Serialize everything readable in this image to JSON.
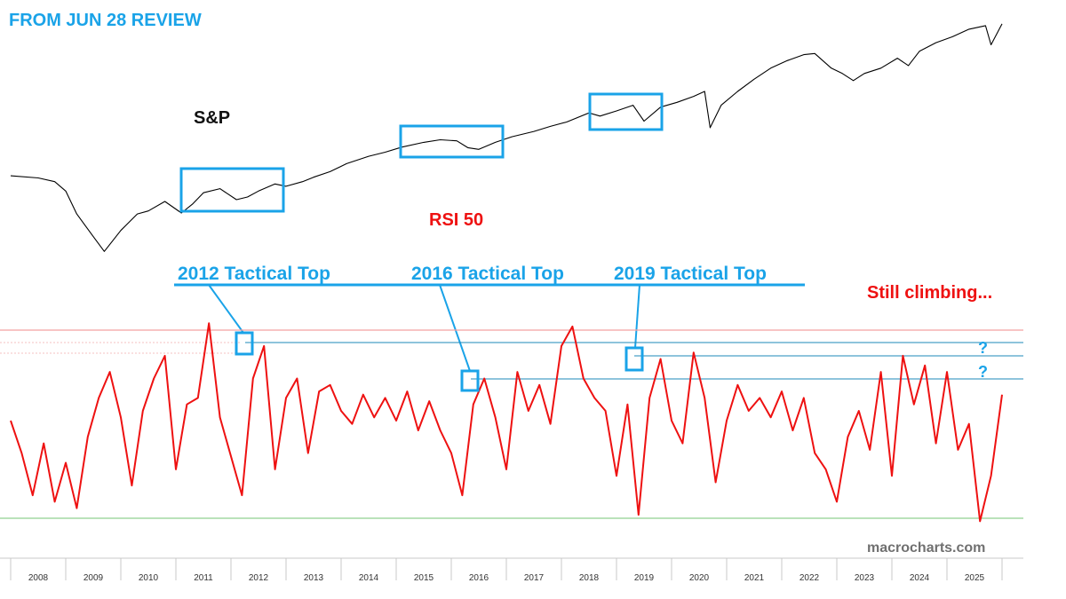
{
  "header": {
    "title": "FROM JUN 28 REVIEW"
  },
  "labels": {
    "spx": "S&P",
    "rsi": "RSI 50",
    "still_climbing": "Still climbing...",
    "question": "?",
    "watermark": "macrocharts.com"
  },
  "tactical_tops": [
    {
      "label": "2012 Tactical Top",
      "year": 2012
    },
    {
      "label": "2016 Tactical Top",
      "year": 2016
    },
    {
      "label": "2019 Tactical Top",
      "year": 2019
    }
  ],
  "colors": {
    "accent": "#1aa3e8",
    "price_line": "#000000",
    "rsi_line": "#ee1111",
    "upper_band": "#f4a0a0",
    "lower_band": "#90d090",
    "tick_text": "#333333"
  },
  "chart_data": [
    {
      "type": "line",
      "name": "S&P",
      "x": [
        2007.5,
        2008.0,
        2008.3,
        2008.5,
        2008.7,
        2009.0,
        2009.2,
        2009.5,
        2009.8,
        2010.0,
        2010.3,
        2010.6,
        2010.8,
        2011.0,
        2011.3,
        2011.6,
        2011.8,
        2012.0,
        2012.3,
        2012.5,
        2012.8,
        2013.0,
        2013.3,
        2013.6,
        2014.0,
        2014.3,
        2014.6,
        2015.0,
        2015.3,
        2015.6,
        2015.8,
        2016.0,
        2016.3,
        2016.6,
        2017.0,
        2017.3,
        2017.6,
        2018.0,
        2018.2,
        2018.5,
        2018.8,
        2019.0,
        2019.3,
        2019.6,
        2019.9,
        2020.1,
        2020.2,
        2020.4,
        2020.7,
        2021.0,
        2021.3,
        2021.6,
        2021.9,
        2022.1,
        2022.4,
        2022.6,
        2022.8,
        2023.0,
        2023.3,
        2023.6,
        2023.8,
        2024.0,
        2024.3,
        2024.6,
        2024.9,
        2025.2,
        2025.3,
        2025.5
      ],
      "values": [
        1500,
        1470,
        1420,
        1300,
        1050,
        850,
        740,
        900,
        1050,
        1080,
        1180,
        1060,
        1150,
        1280,
        1330,
        1200,
        1230,
        1300,
        1390,
        1360,
        1420,
        1480,
        1560,
        1680,
        1800,
        1870,
        1960,
        2050,
        2100,
        2080,
        1950,
        1920,
        2050,
        2160,
        2270,
        2380,
        2480,
        2700,
        2620,
        2750,
        2900,
        2500,
        2850,
        2980,
        3150,
        3300,
        2350,
        2900,
        3300,
        3700,
        4100,
        4400,
        4650,
        4700,
        4100,
        3900,
        3650,
        3900,
        4100,
        4500,
        4200,
        4800,
        5200,
        5500,
        5900,
        6100,
        5100,
        6200
      ],
      "annotations": [
        "S&P",
        "RSI 50"
      ]
    },
    {
      "type": "line",
      "name": "RSI",
      "x": [
        2007.5,
        2007.7,
        2007.9,
        2008.1,
        2008.3,
        2008.5,
        2008.7,
        2008.9,
        2009.1,
        2009.3,
        2009.5,
        2009.7,
        2009.9,
        2010.1,
        2010.3,
        2010.5,
        2010.7,
        2010.9,
        2011.1,
        2011.3,
        2011.5,
        2011.7,
        2011.9,
        2012.1,
        2012.3,
        2012.5,
        2012.7,
        2012.9,
        2013.1,
        2013.3,
        2013.5,
        2013.7,
        2013.9,
        2014.1,
        2014.3,
        2014.5,
        2014.7,
        2014.9,
        2015.1,
        2015.3,
        2015.5,
        2015.7,
        2015.9,
        2016.1,
        2016.3,
        2016.5,
        2016.7,
        2016.9,
        2017.1,
        2017.3,
        2017.5,
        2017.7,
        2017.9,
        2018.1,
        2018.3,
        2018.5,
        2018.7,
        2018.9,
        2019.1,
        2019.3,
        2019.5,
        2019.7,
        2019.9,
        2020.1,
        2020.3,
        2020.5,
        2020.7,
        2020.9,
        2021.1,
        2021.3,
        2021.5,
        2021.7,
        2021.9,
        2022.1,
        2022.3,
        2022.5,
        2022.7,
        2022.9,
        2023.1,
        2023.3,
        2023.5,
        2023.7,
        2023.9,
        2024.1,
        2024.3,
        2024.5,
        2024.7,
        2024.9,
        2025.1,
        2025.3,
        2025.5
      ],
      "values": [
        55,
        45,
        32,
        48,
        30,
        42,
        28,
        50,
        62,
        70,
        56,
        35,
        58,
        68,
        75,
        40,
        60,
        62,
        85,
        56,
        44,
        32,
        68,
        78,
        40,
        62,
        68,
        45,
        64,
        66,
        58,
        54,
        63,
        56,
        62,
        55,
        64,
        52,
        61,
        52,
        45,
        32,
        60,
        68,
        56,
        40,
        70,
        58,
        66,
        54,
        78,
        84,
        68,
        62,
        58,
        38,
        60,
        26,
        62,
        74,
        55,
        48,
        76,
        62,
        36,
        55,
        66,
        58,
        62,
        56,
        64,
        52,
        62,
        45,
        40,
        30,
        50,
        58,
        46,
        70,
        38,
        75,
        60,
        72,
        48,
        70,
        46,
        54,
        24,
        38,
        63
      ],
      "annotations": [
        "2012 Tactical Top",
        "2016 Tactical Top",
        "2019 Tactical Top",
        "Still climbing...",
        "?",
        "?"
      ]
    }
  ],
  "xaxis": {
    "tick_labels": [
      "2008",
      "2009",
      "2010",
      "2011",
      "2012",
      "2013",
      "2014",
      "2015",
      "2016",
      "2017",
      "2018",
      "2019",
      "2020",
      "2021",
      "2022",
      "2023",
      "2024",
      "2025"
    ]
  }
}
